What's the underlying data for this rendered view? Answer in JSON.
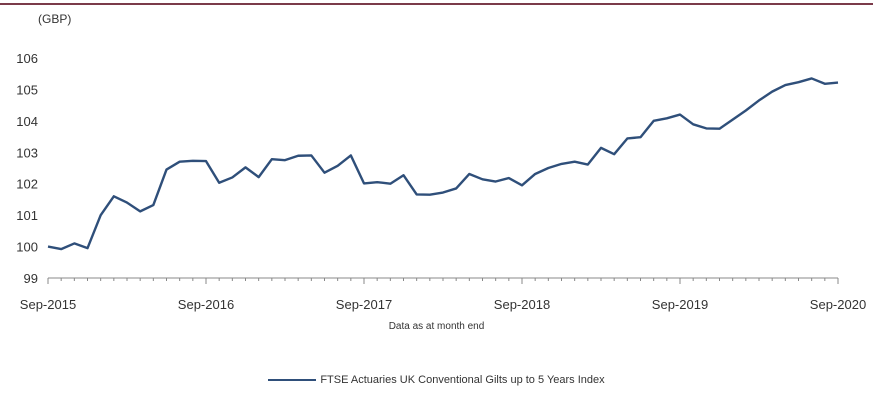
{
  "colors": {
    "series": "#2f4f7a",
    "top_rule": "#7b3b4a",
    "axis": "#888888",
    "text": "#333333"
  },
  "unit_label": "(GBP)",
  "chart_data": {
    "type": "line",
    "title": "",
    "xlabel": "Data as at month end",
    "ylabel": "(GBP)",
    "ylim": [
      99,
      106
    ],
    "yticks": [
      99,
      100,
      101,
      102,
      103,
      104,
      105,
      106
    ],
    "xticks": [
      "Sep-2015",
      "Sep-2016",
      "Sep-2017",
      "Sep-2018",
      "Sep-2019",
      "Sep-2020"
    ],
    "grid": false,
    "legend_position": "bottom",
    "series": [
      {
        "name": "FTSE Actuaries UK Conventional Gilts up to 5 Years Index",
        "x_start": "Sep-2015",
        "x_end": "Sep-2020",
        "frequency": "monthly",
        "values": [
          100.0,
          99.92,
          100.1,
          99.95,
          101.0,
          101.6,
          101.4,
          101.12,
          101.32,
          102.45,
          102.7,
          102.73,
          102.72,
          102.03,
          102.2,
          102.52,
          102.21,
          102.78,
          102.75,
          102.89,
          102.9,
          102.35,
          102.57,
          102.9,
          102.01,
          102.05,
          102.0,
          102.27,
          101.66,
          101.65,
          101.72,
          101.85,
          102.31,
          102.14,
          102.07,
          102.18,
          101.95,
          102.31,
          102.5,
          102.63,
          102.7,
          102.61,
          103.14,
          102.94,
          103.44,
          103.48,
          104.0,
          104.08,
          104.2,
          103.89,
          103.76,
          103.75,
          104.04,
          104.33,
          104.65,
          104.93,
          105.14,
          105.23,
          105.35,
          105.18,
          105.22
        ]
      }
    ]
  }
}
